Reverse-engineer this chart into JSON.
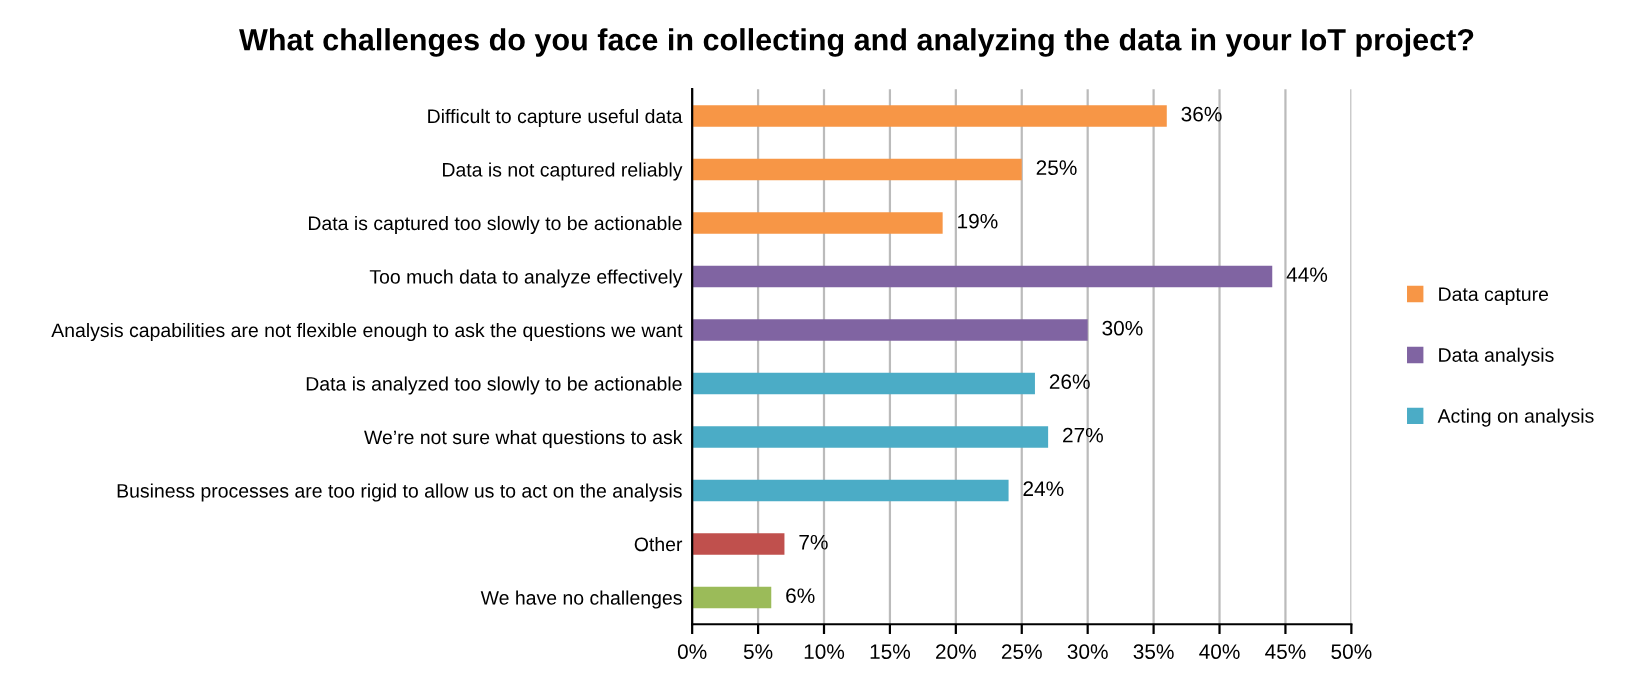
{
  "chart_data": {
    "type": "bar",
    "orientation": "horizontal",
    "title": "What challenges do you face in collecting and analyzing the data in your IoT project?",
    "categories": [
      "Difficult to capture useful data",
      "Data is not captured reliably",
      "Data is captured too slowly to be actionable",
      "Too much data to analyze effectively",
      "Analysis capabilities are not flexible enough to ask the questions we want",
      "Data is analyzed too slowly to be actionable",
      "We’re not sure what questions to ask",
      "Business processes are too rigid to allow us to act on the analysis",
      "Other",
      "We have no challenges"
    ],
    "series": [
      {
        "name": "Data capture",
        "color": "#f79646",
        "values": [
          36,
          25,
          19,
          null,
          null,
          null,
          null,
          null,
          null,
          null
        ],
        "value_labels": [
          "36%",
          "25%",
          "19%",
          null,
          null,
          null,
          null,
          null,
          null,
          null
        ]
      },
      {
        "name": "Data analysis",
        "color": "#8064a2",
        "values": [
          null,
          null,
          null,
          44,
          30,
          null,
          null,
          null,
          null,
          null
        ],
        "value_labels": [
          null,
          null,
          null,
          "44%",
          "30%",
          null,
          null,
          null,
          null,
          null
        ]
      },
      {
        "name": "Acting on analysis",
        "color": "#4bacc6",
        "values": [
          null,
          null,
          null,
          null,
          null,
          26,
          27,
          24,
          null,
          null
        ],
        "value_labels": [
          null,
          null,
          null,
          null,
          null,
          "26%",
          "27%",
          "24%",
          null,
          null
        ]
      },
      {
        "color": "#c0504d",
        "values": [
          null,
          null,
          null,
          null,
          null,
          null,
          null,
          null,
          7,
          null
        ],
        "value_labels": [
          null,
          null,
          null,
          null,
          null,
          null,
          null,
          null,
          "7%",
          null
        ]
      },
      {
        "color": "#9bbb59",
        "values": [
          null,
          null,
          null,
          null,
          null,
          null,
          null,
          null,
          null,
          6
        ],
        "value_labels": [
          null,
          null,
          null,
          null,
          null,
          null,
          null,
          null,
          null,
          "6%"
        ]
      }
    ],
    "xlim": [
      0,
      50
    ],
    "xticks": [
      {
        "value": 0,
        "label": "0%"
      },
      {
        "value": 5,
        "label": "5%"
      },
      {
        "value": 10,
        "label": "10%"
      },
      {
        "value": 15,
        "label": "15%"
      },
      {
        "value": 20,
        "label": "20%"
      },
      {
        "value": 25,
        "label": "25%"
      },
      {
        "value": 30,
        "label": "30%"
      },
      {
        "value": 35,
        "label": "35%"
      },
      {
        "value": 40,
        "label": "40%"
      },
      {
        "value": 45,
        "label": "45%"
      },
      {
        "value": 50,
        "label": "50%"
      }
    ],
    "grid": "x",
    "legend": "right"
  }
}
